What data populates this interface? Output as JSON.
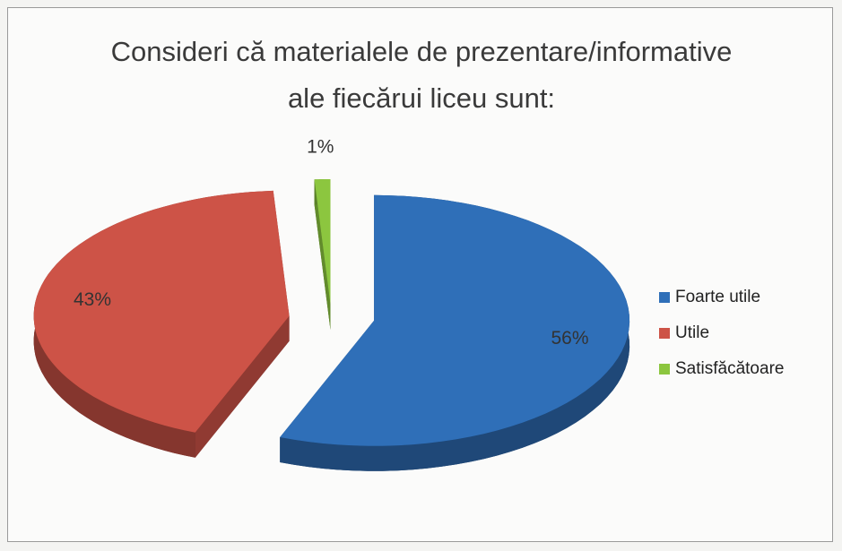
{
  "chart_data": {
    "type": "pie3d",
    "title": "Consideri că materialele de prezentare/informative ale fiecărui liceu sunt:",
    "categories": [
      "Foarte utile",
      "Utile",
      "Satisfăcătoare"
    ],
    "values": [
      56,
      43,
      1
    ],
    "value_labels": [
      "56%",
      "43%",
      "1%"
    ],
    "colors": [
      "#2f6fb8",
      "#cd5347",
      "#8cc63f"
    ],
    "legend": "right"
  }
}
